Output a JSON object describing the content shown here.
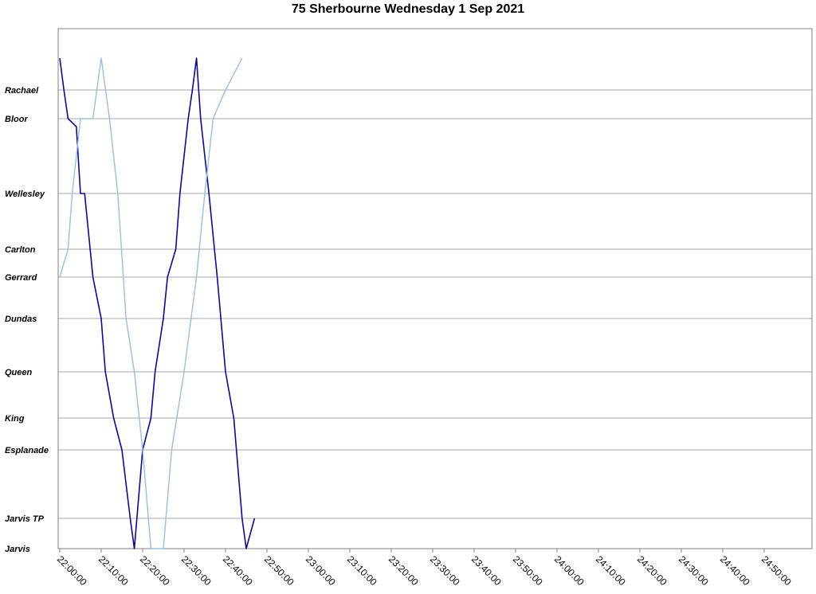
{
  "chart_data": {
    "type": "line",
    "title": "75 Sherbourne Wednesday 1 Sep 2021",
    "xlabel": "",
    "ylabel": "",
    "x_range": [
      "22:00:00",
      "24:55:00"
    ],
    "x_ticks": [
      "22:00:00",
      "22:10:00",
      "22:20:00",
      "22:30:00",
      "22:40:00",
      "22:50:00",
      "23:00:00",
      "23:10:00",
      "23:20:00",
      "23:30:00",
      "23:40:00",
      "23:50:00",
      "24:00:00",
      "24:10:00",
      "24:20:00",
      "24:30:00",
      "24:40:00",
      "24:50:00"
    ],
    "stops": [
      "Rachael",
      "Bloor",
      "Wellesley",
      "Carlton",
      "Gerrard",
      "Dundas",
      "Queen",
      "King",
      "Esplanade",
      "Jarvis TP",
      "Jarvis"
    ],
    "grid": true,
    "legend": "none",
    "series": [
      {
        "color": "#0a0aa0",
        "points": [
          [
            "22:00:00",
            "Rachael+"
          ],
          [
            "22:01:00",
            "Rachael"
          ],
          [
            "22:02:00",
            "Bloor"
          ],
          [
            "22:04:00",
            "Bloor-"
          ],
          [
            "22:05:00",
            "Wellesley"
          ],
          [
            "22:06:00",
            "Wellesley"
          ],
          [
            "22:08:00",
            "Gerrard"
          ],
          [
            "22:10:00",
            "Dundas"
          ],
          [
            "22:11:00",
            "Queen"
          ],
          [
            "22:13:00",
            "King"
          ],
          [
            "22:15:00",
            "Esplanade"
          ],
          [
            "22:17:00",
            "Jarvis TP"
          ],
          [
            "22:18:00",
            "Jarvis"
          ],
          [
            "22:20:00",
            "Esplanade"
          ],
          [
            "22:22:00",
            "King"
          ],
          [
            "22:23:00",
            "Queen"
          ],
          [
            "22:25:00",
            "Dundas"
          ],
          [
            "22:26:00",
            "Gerrard"
          ],
          [
            "22:28:00",
            "Carlton"
          ],
          [
            "22:29:00",
            "Wellesley"
          ],
          [
            "22:31:00",
            "Bloor"
          ],
          [
            "22:32:00",
            "Rachael"
          ],
          [
            "22:33:00",
            "Rachael+"
          ],
          [
            "22:34:00",
            "Bloor"
          ],
          [
            "22:36:00",
            "Wellesley"
          ],
          [
            "22:38:00",
            "Gerrard"
          ],
          [
            "22:40:00",
            "Queen"
          ],
          [
            "22:42:00",
            "King"
          ],
          [
            "22:44:00",
            "Jarvis TP"
          ],
          [
            "22:45:00",
            "Jarvis"
          ],
          [
            "22:47:00",
            "Jarvis TP"
          ]
        ]
      },
      {
        "color": "#93c1e4",
        "points": [
          [
            "22:00:00",
            "Gerrard"
          ],
          [
            "22:02:00",
            "Carlton"
          ],
          [
            "22:03:00",
            "Wellesley"
          ],
          [
            "22:05:00",
            "Bloor"
          ],
          [
            "22:08:00",
            "Bloor"
          ],
          [
            "22:10:00",
            "Rachael+"
          ],
          [
            "22:12:00",
            "Bloor"
          ],
          [
            "22:14:00",
            "Wellesley"
          ],
          [
            "22:16:00",
            "Dundas"
          ],
          [
            "22:18:00",
            "Queen"
          ],
          [
            "22:20:00",
            "Esplanade"
          ],
          [
            "22:22:00",
            "Jarvis"
          ],
          [
            "22:25:00",
            "Jarvis"
          ],
          [
            "22:27:00",
            "Esplanade"
          ],
          [
            "22:30:00",
            "Queen"
          ],
          [
            "22:33:00",
            "Gerrard"
          ],
          [
            "22:35:00",
            "Wellesley"
          ],
          [
            "22:37:00",
            "Bloor"
          ],
          [
            "22:40:00",
            "Rachael"
          ],
          [
            "22:44:00",
            "Rachael+"
          ]
        ]
      }
    ]
  }
}
